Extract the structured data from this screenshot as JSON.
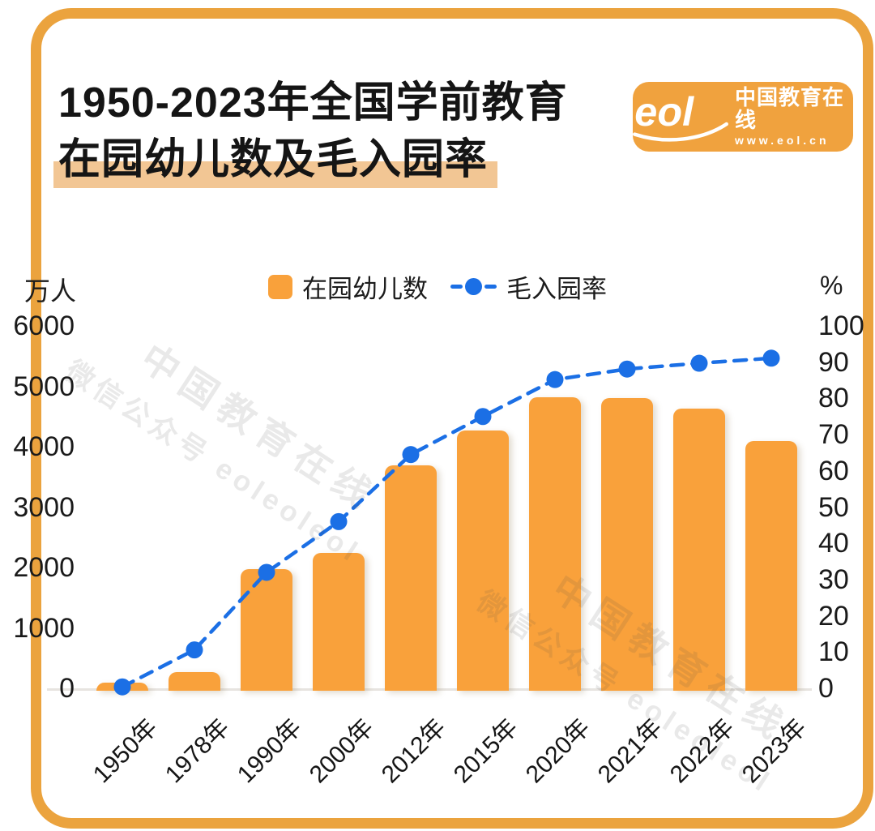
{
  "title": {
    "line1": "1950-2023年全国学前教育",
    "line2": "在园幼儿数及毛入园率"
  },
  "logo": {
    "mark": "eol",
    "name": "中国教育在线",
    "url": "www.eol.cn"
  },
  "watermark": {
    "line1": "中国教育在线",
    "line2": "微信公众号 eoleoleol"
  },
  "colors": {
    "bar": "#F9A13B",
    "line": "#1B6FE5",
    "frame": "#EBA33E",
    "logo_bg": "#F0A23E",
    "title_highlight": "#F2C694",
    "axis_line": "#E7E4E0",
    "watermark": "rgba(70,70,70,0.12)"
  },
  "chart_data": {
    "type": "bar",
    "title": "1950-2023年全国学前教育在园幼儿数及毛入园率",
    "categories": [
      "1950年",
      "1978年",
      "1990年",
      "2000年",
      "2012年",
      "2015年",
      "2020年",
      "2021年",
      "2022年",
      "2023年"
    ],
    "series": [
      {
        "name": "在园幼儿数",
        "type": "bar",
        "axis": "left",
        "unit": "万人",
        "values": [
          90,
          265,
          1972,
          2244,
          3686,
          4265,
          4818,
          4805,
          4628,
          4093
        ]
      },
      {
        "name": "毛入园率",
        "type": "line",
        "axis": "right",
        "unit": "%",
        "values": [
          0.4,
          10.6,
          32,
          46,
          64.5,
          75,
          85.2,
          88.1,
          89.7,
          91.1
        ]
      }
    ],
    "y_left": {
      "unit": "万人",
      "min": 0,
      "max": 6000,
      "ticks": [
        6000,
        5000,
        4000,
        3000,
        2000,
        1000,
        0
      ]
    },
    "y_right": {
      "unit": "%",
      "min": 0,
      "max": 100,
      "ticks": [
        100,
        90,
        80,
        70,
        60,
        50,
        40,
        30,
        20,
        10,
        0
      ]
    },
    "legend_position": "top",
    "grid": false,
    "line_style": "dashed"
  }
}
